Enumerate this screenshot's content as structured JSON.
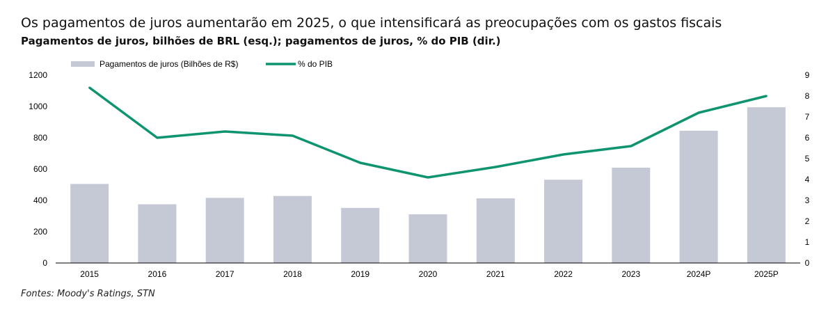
{
  "title": "Os pagamentos de juros aumentarão em 2025, o que intensificará as preocupações com os gastos fiscais",
  "subtitle": "Pagamentos de juros, bilhões de BRL (esq.); pagamentos de juros, % do PIB (dir.)",
  "source": "Fontes: Moody's Ratings, STN",
  "colors": {
    "bar": "#c5c9d6",
    "line": "#0f9470"
  },
  "chart_data": {
    "type": "bar+line",
    "categories": [
      "2015",
      "2016",
      "2017",
      "2018",
      "2019",
      "2020",
      "2021",
      "2022",
      "2023",
      "2024P",
      "2025P"
    ],
    "series": [
      {
        "name": "Pagamentos de juros (Bilhões de R$)",
        "type": "bar",
        "axis": "left",
        "values": [
          505,
          375,
          416,
          428,
          352,
          311,
          413,
          532,
          609,
          845,
          995
        ]
      },
      {
        "name": "% do PIB",
        "type": "line",
        "axis": "right",
        "values": [
          8.4,
          6.0,
          6.3,
          6.1,
          4.8,
          4.1,
          4.6,
          5.2,
          5.6,
          7.2,
          8.0
        ]
      }
    ],
    "ylim_left": [
      0,
      1200
    ],
    "yticks_left": [
      "0",
      "200",
      "400",
      "600",
      "800",
      "1000",
      "1200"
    ],
    "ylim_right": [
      0,
      9
    ],
    "yticks_right": [
      "0",
      "1",
      "2",
      "3",
      "4",
      "5",
      "6",
      "7",
      "8",
      "9"
    ],
    "legend_position": "top-left",
    "grid": false
  }
}
